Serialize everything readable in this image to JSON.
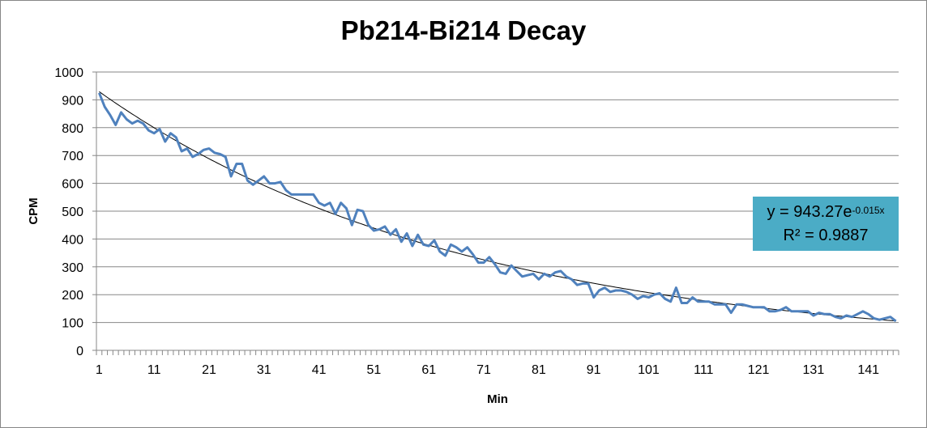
{
  "chart_data": {
    "type": "line",
    "title": "Pb214-Bi214 Decay",
    "xlabel": "Min",
    "ylabel": "CPM",
    "ylim": [
      0,
      1000
    ],
    "yticks": [
      0,
      100,
      200,
      300,
      400,
      500,
      600,
      700,
      800,
      900,
      1000
    ],
    "xticks": [
      1,
      11,
      21,
      31,
      41,
      51,
      61,
      71,
      81,
      91,
      101,
      111,
      121,
      131,
      141
    ],
    "grid": "horizontal",
    "x_range": [
      1,
      146
    ],
    "series": [
      {
        "color": "#4f81bd",
        "x": [
          1,
          2,
          3,
          4,
          5,
          6,
          7,
          8,
          9,
          10,
          11,
          12,
          13,
          14,
          15,
          16,
          17,
          18,
          19,
          20,
          21,
          22,
          23,
          24,
          25,
          26,
          27,
          28,
          29,
          30,
          31,
          32,
          33,
          34,
          35,
          36,
          37,
          38,
          39,
          40,
          41,
          42,
          43,
          44,
          45,
          46,
          47,
          48,
          49,
          50,
          51,
          52,
          53,
          54,
          55,
          56,
          57,
          58,
          59,
          60,
          61,
          62,
          63,
          64,
          65,
          66,
          67,
          68,
          69,
          70,
          71,
          72,
          73,
          74,
          75,
          76,
          77,
          78,
          79,
          80,
          81,
          82,
          83,
          84,
          85,
          86,
          87,
          88,
          89,
          90,
          91,
          92,
          93,
          94,
          95,
          96,
          97,
          98,
          99,
          100,
          101,
          102,
          103,
          104,
          105,
          106,
          107,
          108,
          109,
          110,
          111,
          112,
          113,
          114,
          115,
          116,
          117,
          118,
          119,
          120,
          121,
          122,
          123,
          124,
          125,
          126,
          127,
          128,
          129,
          130,
          131,
          132,
          133,
          134,
          135,
          136,
          137,
          138,
          139,
          140,
          141,
          142,
          143,
          144,
          145,
          146
        ],
        "y": [
          925,
          875,
          845,
          810,
          855,
          830,
          815,
          825,
          815,
          790,
          780,
          795,
          750,
          780,
          765,
          715,
          725,
          695,
          705,
          720,
          725,
          710,
          705,
          695,
          625,
          670,
          670,
          610,
          595,
          610,
          625,
          600,
          600,
          605,
          575,
          560,
          560,
          560,
          560,
          560,
          530,
          520,
          530,
          490,
          530,
          510,
          450,
          505,
          500,
          450,
          430,
          435,
          445,
          415,
          435,
          390,
          420,
          375,
          415,
          380,
          375,
          395,
          355,
          340,
          380,
          370,
          355,
          370,
          345,
          315,
          315,
          335,
          310,
          280,
          275,
          305,
          285,
          265,
          270,
          275,
          255,
          275,
          265,
          280,
          285,
          265,
          255,
          235,
          240,
          240,
          190,
          215,
          225,
          210,
          215,
          215,
          210,
          200,
          185,
          195,
          190,
          200,
          205,
          185,
          175,
          225,
          170,
          170,
          190,
          175,
          175,
          175,
          165,
          165,
          165,
          135,
          165,
          165,
          160,
          155,
          155,
          155,
          140,
          140,
          145,
          155,
          140,
          140,
          140,
          140,
          125,
          135,
          130,
          130,
          120,
          115,
          125,
          120,
          130,
          140,
          130,
          115,
          110,
          115,
          120,
          105
        ]
      }
    ],
    "trendline": {
      "type": "exponential",
      "a": 943.27,
      "b": -0.015,
      "color": "#000000",
      "equation_prefix": "y = 943.27e",
      "equation_exponent": "-0.015x",
      "r_squared": "R² = 0.9887"
    }
  }
}
